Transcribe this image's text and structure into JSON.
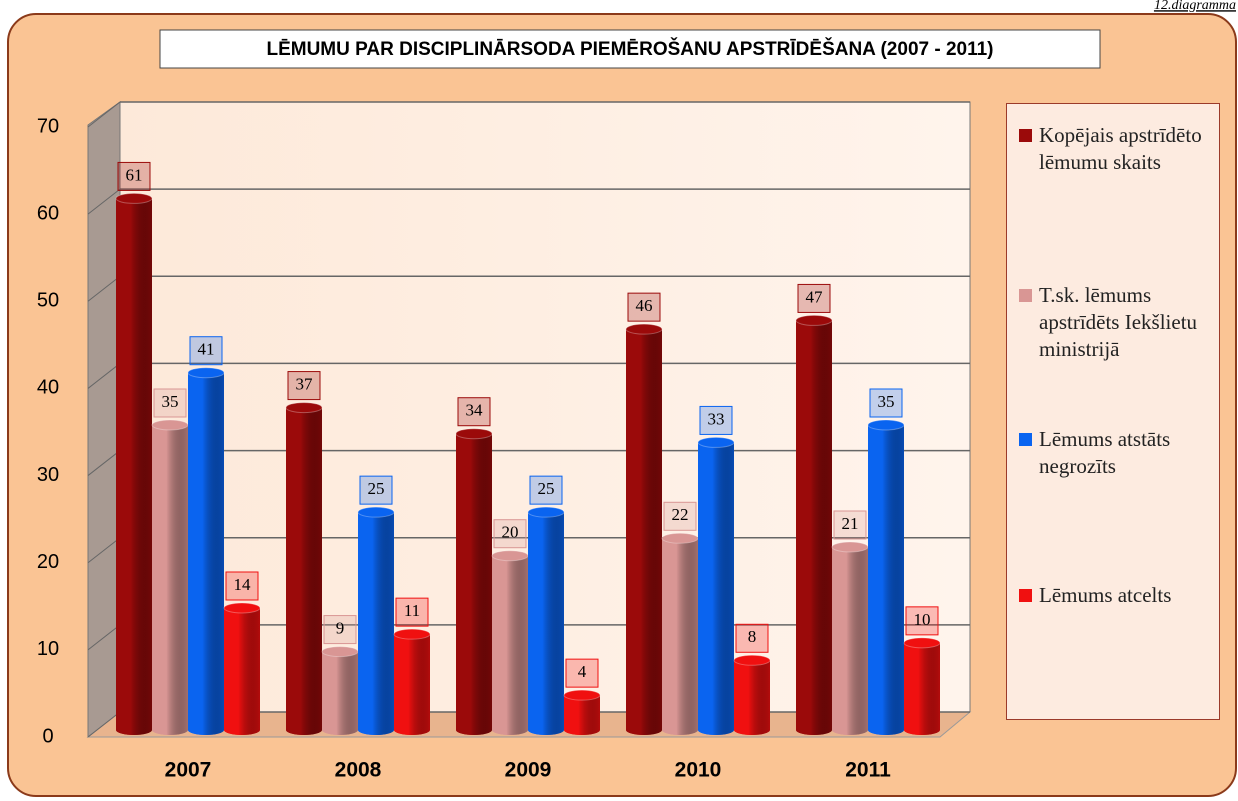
{
  "chart_data": {
    "type": "bar",
    "title": "LĒMUMU PAR DISCIPLINĀRSODA PIEMĒROŠANU APSTRĪDĒŠANA (2007 - 2011)",
    "caption": "12.diagramma",
    "categories": [
      "2007",
      "2008",
      "2009",
      "2010",
      "2011"
    ],
    "series": [
      {
        "name": "Kopējais apstrīdēto lēmumu skaits",
        "color": "#9b0a0a",
        "values": [
          61,
          37,
          34,
          46,
          47
        ]
      },
      {
        "name": "T.sk. lēmums apstrīdēts Iekšlietu ministrijā",
        "color": "#d99694",
        "values": [
          35,
          9,
          20,
          22,
          21
        ]
      },
      {
        "name": "Lēmums atstāts negrozīts",
        "color": "#0a64f0",
        "values": [
          41,
          25,
          25,
          33,
          35
        ]
      },
      {
        "name": "Lēmums atcelts",
        "color": "#f01010",
        "values": [
          14,
          11,
          4,
          8,
          10
        ]
      }
    ],
    "ylim": [
      0,
      70
    ],
    "yticks": [
      0,
      10,
      20,
      30,
      40,
      50,
      60,
      70
    ],
    "grid": true
  }
}
